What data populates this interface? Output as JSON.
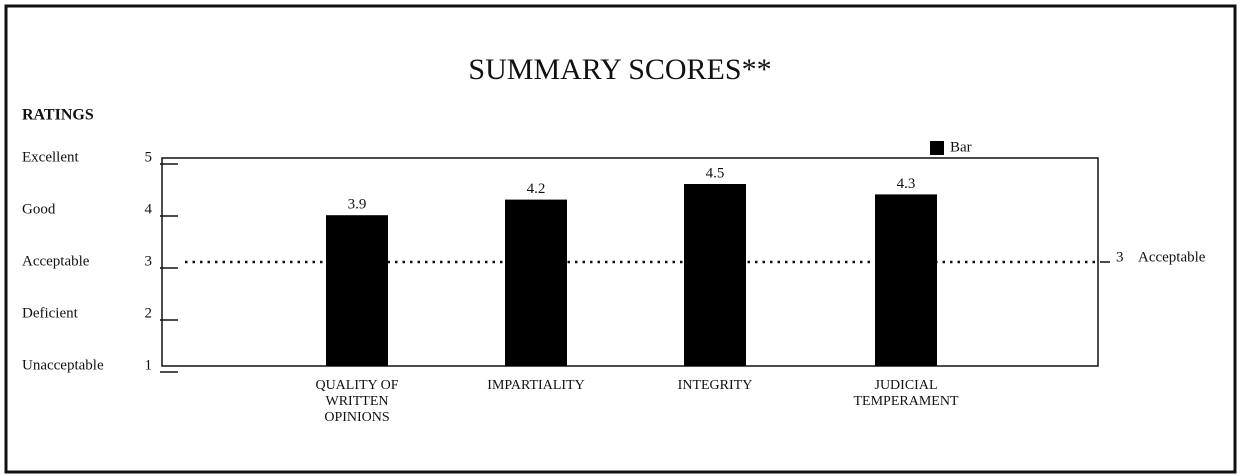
{
  "chart_data": {
    "type": "bar",
    "title": "SUMMARY SCORES**",
    "y_label": "RATINGS",
    "categories": [
      "QUALITY OF\nWRITTEN\nOPINIONS",
      "IMPARTIALITY",
      "INTEGRITY",
      "JUDICIAL\nTEMPERAMENT"
    ],
    "series": [
      {
        "name": "Bar",
        "color": "#000000",
        "values": [
          3.9,
          4.2,
          4.5,
          4.3
        ]
      }
    ],
    "ylim": [
      1,
      5
    ],
    "yticks": [
      1,
      2,
      3,
      4,
      5
    ],
    "ytick_names": [
      "Unacceptable",
      "Deficient",
      "Acceptable",
      "Good",
      "Excellent"
    ],
    "reference_line": {
      "value": 3,
      "label": "Acceptable"
    },
    "legend": "top-right"
  }
}
